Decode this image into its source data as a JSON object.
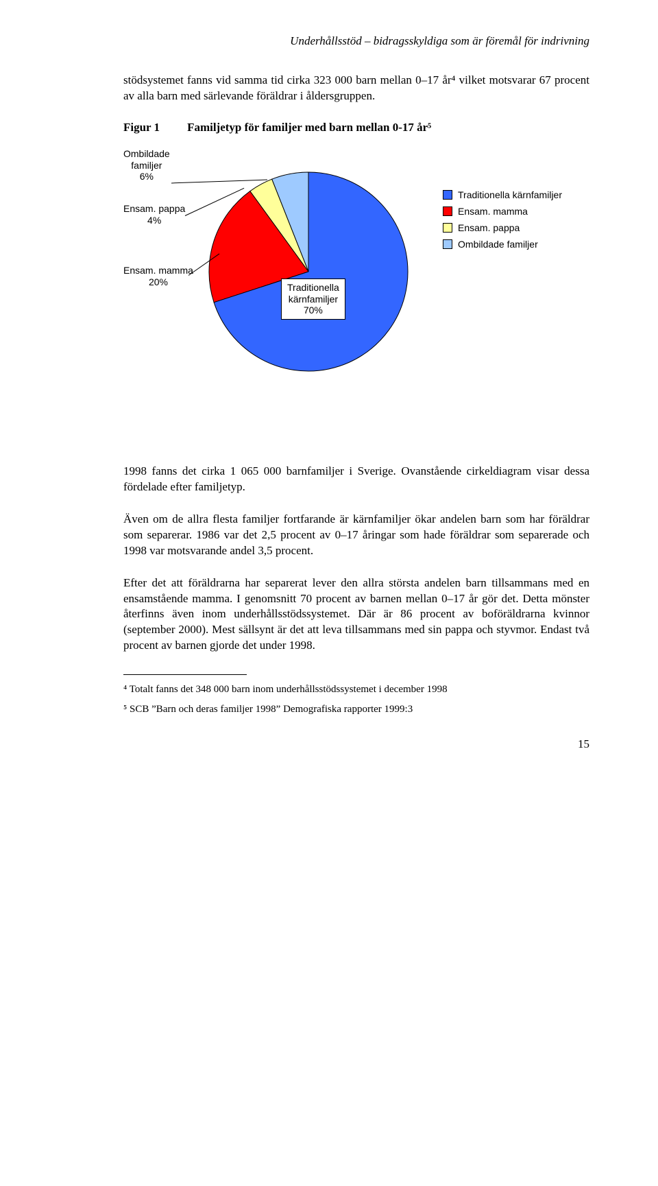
{
  "header": {
    "running_title": "Underhållsstöd – bidragsskyldiga som är föremål för indrivning"
  },
  "intro": {
    "text": "stödsystemet fanns vid samma tid cirka 323 000 barn mellan 0–17 år⁴ vilket motsvarar 67 procent av alla barn med särlevande föräldrar i åldersgruppen."
  },
  "figure": {
    "label": "Figur 1",
    "caption": "Familjetyp för familjer med barn mellan 0-17 år⁵"
  },
  "chart": {
    "type": "pie",
    "background_color": "#ffffff",
    "label_fontsize": 14,
    "label_fontfamily": "Arial",
    "slices": [
      {
        "key": "traditionella",
        "label_line1": "Traditionella",
        "label_line2": "kärnfamiljer",
        "pct_label": "70%",
        "value": 70,
        "color": "#3366ff"
      },
      {
        "key": "ensam_mamma",
        "label_line1": "Ensam. mamma",
        "label_line2": "20%",
        "pct_label": "20%",
        "value": 20,
        "color": "#ff0000"
      },
      {
        "key": "ensam_pappa",
        "label_line1": "Ensam. pappa",
        "label_line2": "4%",
        "pct_label": "4%",
        "value": 4,
        "color": "#ffff9a"
      },
      {
        "key": "ombildade",
        "label_line1": "Ombildade",
        "label_line2": "familjer",
        "pct_label": "6%",
        "value": 6,
        "color": "#9ecaff"
      }
    ],
    "center_box": {
      "line1": "Traditionella",
      "line2": "kärnfamiljer",
      "line3": "70%"
    },
    "outer_labels": {
      "ombildade": {
        "line1": "Ombildade",
        "line2": "familjer",
        "line3": "6%"
      },
      "ensam_pappa": {
        "line1": "Ensam. pappa",
        "line2": "4%"
      },
      "ensam_mamma": {
        "line1": "Ensam. mamma",
        "line2": "20%"
      }
    },
    "legend": [
      {
        "label": "Traditionella kärnfamiljer",
        "color": "#3366ff"
      },
      {
        "label": "Ensam. mamma",
        "color": "#ff0000"
      },
      {
        "label": "Ensam. pappa",
        "color": "#ffff9a"
      },
      {
        "label": "Ombildade familjer",
        "color": "#9ecaff"
      }
    ],
    "stroke": "#000000",
    "stroke_width": 1
  },
  "body": {
    "p1": "1998 fanns det cirka 1 065 000 barnfamiljer i Sverige. Ovanstående cirkeldiagram visar dessa fördelade efter familjetyp.",
    "p2": "Även om de allra flesta familjer fortfarande är kärnfamiljer ökar andelen barn som har föräldrar som separerar. 1986 var det 2,5 procent av 0–17 åringar som hade föräldrar som separerade och 1998 var motsvarande andel 3,5 procent.",
    "p3": "Efter det att föräldrarna har separerat lever den allra största andelen barn tillsammans med en ensamstående mamma. I genomsnitt 70 procent av barnen mellan 0–17 år gör det. Detta mönster återfinns även inom underhållsstödssystemet. Där är 86 procent av boföräldrarna kvinnor  (september 2000). Mest sällsynt är det att leva tillsammans med sin pappa och styvmor. Endast två procent av barnen gjorde det under 1998."
  },
  "footnotes": {
    "f4": "⁴ Totalt fanns det 348 000 barn inom underhållsstödssystemet i december 1998",
    "f5": "⁵  SCB ”Barn och deras familjer 1998” Demografiska rapporter 1999:3"
  },
  "page_number": "15"
}
